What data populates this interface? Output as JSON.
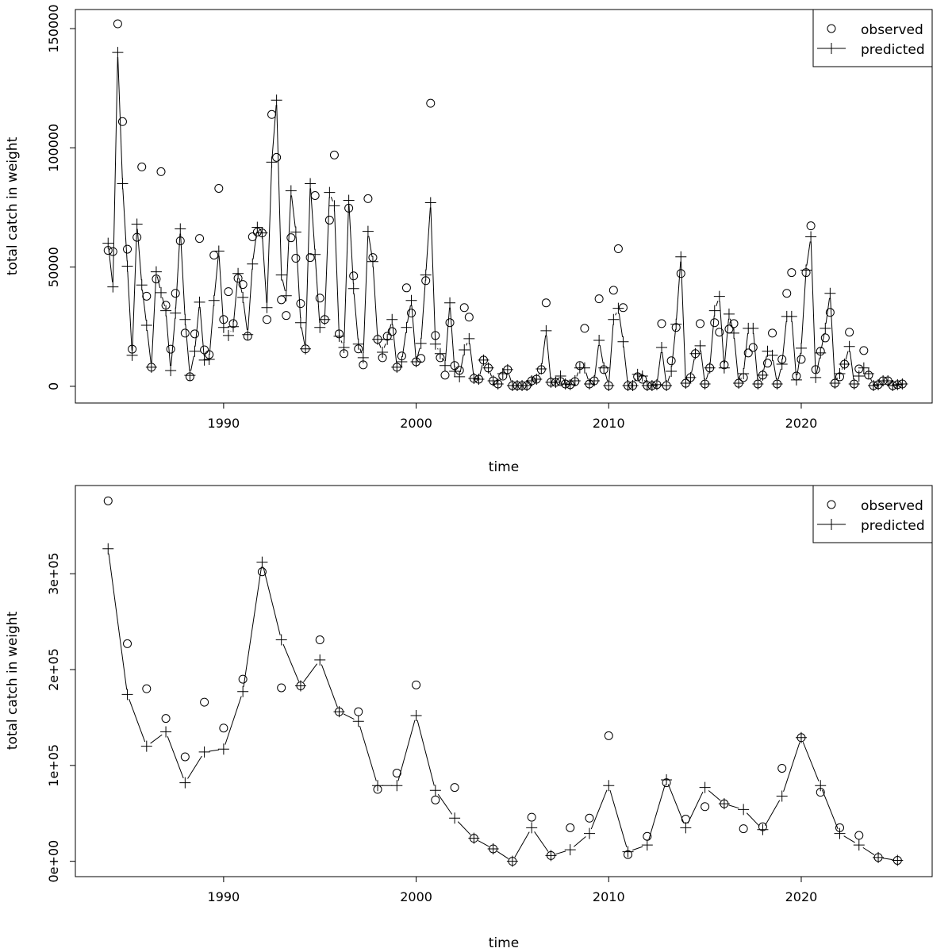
{
  "chart_data": [
    {
      "type": "line",
      "xlabel": "time",
      "ylabel": "total catch in weight",
      "xlim": [
        1982.3,
        2026.8
      ],
      "ylim": [
        -7000,
        158000
      ],
      "xticks": [
        1990,
        2000,
        2010,
        2020
      ],
      "xtick_labels": [
        "1990",
        "2000",
        "2010",
        "2020"
      ],
      "yticks": [
        0,
        50000,
        100000,
        150000
      ],
      "ytick_labels": [
        "0",
        "50000",
        "100000",
        "150000"
      ],
      "grid": false,
      "legend": {
        "placement": "top-right",
        "entries": [
          "observed",
          "predicted"
        ]
      },
      "x_first": 1984.0,
      "x_step": 0.25,
      "series": [
        {
          "name": "observed",
          "marker": "circle",
          "line": false,
          "values": [
            57000,
            56500,
            152000,
            111000,
            57500,
            15600,
            62500,
            92000,
            37800,
            8000,
            45000,
            90000,
            34000,
            15600,
            39000,
            61000,
            22300,
            4000,
            22000,
            62000,
            15300,
            13300,
            55000,
            83000,
            28000,
            39700,
            26300,
            45300,
            42700,
            21000,
            62700,
            64700,
            64300,
            28000,
            114000,
            96000,
            36300,
            29700,
            62300,
            53700,
            34700,
            15700,
            54000,
            80000,
            37000,
            28000,
            69700,
            97000,
            22000,
            13700,
            74700,
            46300,
            15700,
            9000,
            78700,
            54000,
            19700,
            12000,
            21000,
            23000,
            8000,
            12700,
            41300,
            30700,
            10300,
            11700,
            44300,
            118700,
            21300,
            12000,
            4700,
            26700,
            8700,
            6700,
            33000,
            29000,
            3300,
            3000,
            11000,
            7700,
            2300,
            1000,
            4300,
            7000,
            300,
            300,
            300,
            300,
            2300,
            3000,
            7000,
            35000,
            1700,
            1700,
            2000,
            1000,
            700,
            2000,
            8700,
            24300,
            1000,
            2300,
            36700,
            7000,
            300,
            40300,
            57700,
            33000,
            300,
            300,
            4000,
            3000,
            300,
            300,
            700,
            26300,
            300,
            10700,
            24700,
            47300,
            1300,
            3700,
            13700,
            26300,
            1000,
            7700,
            26700,
            22700,
            9000,
            24000,
            26300,
            1300,
            3700,
            14000,
            16300,
            1000,
            4700,
            9700,
            22300,
            1000,
            11300,
            39000,
            47700,
            4300,
            11300,
            47700,
            67300,
            7000,
            14700,
            20300,
            31000,
            1300,
            4000,
            9300,
            22700,
            1000,
            7300,
            15000,
            4700,
            300,
            700,
            2300,
            2300,
            300,
            700,
            1000
          ]
        },
        {
          "name": "predicted",
          "marker": "plus",
          "line": true,
          "values": [
            60000,
            41700,
            140000,
            85000,
            50400,
            13000,
            68000,
            42500,
            25600,
            8000,
            48000,
            39300,
            31700,
            6600,
            30700,
            66000,
            28000,
            4600,
            14700,
            35300,
            11000,
            11300,
            36000,
            56700,
            24700,
            21300,
            25000,
            47300,
            37300,
            21700,
            51300,
            66700,
            64300,
            33000,
            94000,
            120000,
            46700,
            38000,
            82000,
            64700,
            26700,
            15700,
            85000,
            55300,
            24700,
            28000,
            81300,
            75700,
            21000,
            16300,
            78000,
            41000,
            17700,
            12000,
            65000,
            52300,
            19700,
            14300,
            19700,
            28000,
            8000,
            10300,
            24700,
            36000,
            10300,
            18000,
            46700,
            77000,
            17700,
            13700,
            8700,
            35000,
            6300,
            4000,
            15300,
            20000,
            3300,
            3000,
            11000,
            7700,
            2300,
            1000,
            5300,
            7000,
            300,
            300,
            300,
            300,
            2300,
            3000,
            7300,
            23300,
            1700,
            1700,
            4300,
            1000,
            700,
            2300,
            7700,
            7700,
            1000,
            2300,
            19300,
            7700,
            300,
            28000,
            32700,
            18700,
            300,
            300,
            5000,
            4300,
            300,
            300,
            700,
            16300,
            300,
            6300,
            26000,
            54300,
            1300,
            3700,
            13700,
            17000,
            1000,
            7700,
            31700,
            37700,
            7700,
            30300,
            22300,
            1300,
            5300,
            24300,
            24300,
            1000,
            4700,
            14700,
            13000,
            1000,
            9300,
            29300,
            29300,
            2700,
            16000,
            48700,
            62700,
            3700,
            14000,
            24300,
            39000,
            1300,
            5300,
            9300,
            16700,
            1000,
            4300,
            7700,
            5300,
            300,
            700,
            2300,
            2300,
            300,
            700,
            1000
          ]
        }
      ]
    },
    {
      "type": "line",
      "xlabel": "time",
      "ylabel": "total catch in weight",
      "xlim": [
        1982.3,
        2026.8
      ],
      "ylim": [
        -16000,
        392000
      ],
      "xticks": [
        1990,
        2000,
        2010,
        2020
      ],
      "xtick_labels": [
        "1990",
        "2000",
        "2010",
        "2020"
      ],
      "yticks": [
        0,
        100000,
        200000,
        300000
      ],
      "ytick_labels": [
        "0e+00",
        "1e+05",
        "2e+05",
        "3e+05"
      ],
      "grid": false,
      "legend": {
        "placement": "top-right",
        "entries": [
          "observed",
          "predicted"
        ]
      },
      "x": [
        1984,
        1985,
        1986,
        1987,
        1988,
        1989,
        1990,
        1991,
        1992,
        1993,
        1994,
        1995,
        1996,
        1997,
        1998,
        1999,
        2000,
        2001,
        2002,
        2003,
        2004,
        2005,
        2006,
        2007,
        2008,
        2009,
        2010,
        2011,
        2012,
        2013,
        2014,
        2015,
        2016,
        2017,
        2018,
        2019,
        2020,
        2021,
        2022,
        2023,
        2024,
        2025
      ],
      "series": [
        {
          "name": "observed",
          "marker": "circle",
          "line": false,
          "values": [
            376000,
            227000,
            180000,
            149000,
            109000,
            166000,
            139000,
            190000,
            302000,
            181000,
            183000,
            231000,
            156000,
            156000,
            75000,
            92000,
            184000,
            64000,
            77000,
            24000,
            13000,
            0,
            46000,
            6000,
            35000,
            45000,
            131000,
            7000,
            26000,
            82000,
            44000,
            57000,
            60000,
            34000,
            36000,
            97000,
            129000,
            72000,
            35000,
            27000,
            4000,
            1000
          ]
        },
        {
          "name": "predicted",
          "marker": "plus",
          "line": true,
          "values": [
            326000,
            174000,
            120000,
            135000,
            82000,
            114000,
            117000,
            177000,
            312000,
            231000,
            183000,
            210000,
            156000,
            146000,
            79000,
            79000,
            152000,
            74000,
            45000,
            24000,
            13000,
            0,
            35000,
            6000,
            12000,
            29000,
            79000,
            10000,
            17000,
            85000,
            35000,
            77000,
            60000,
            54000,
            33000,
            68000,
            129000,
            79000,
            29000,
            17000,
            4000,
            1000
          ]
        }
      ]
    }
  ]
}
